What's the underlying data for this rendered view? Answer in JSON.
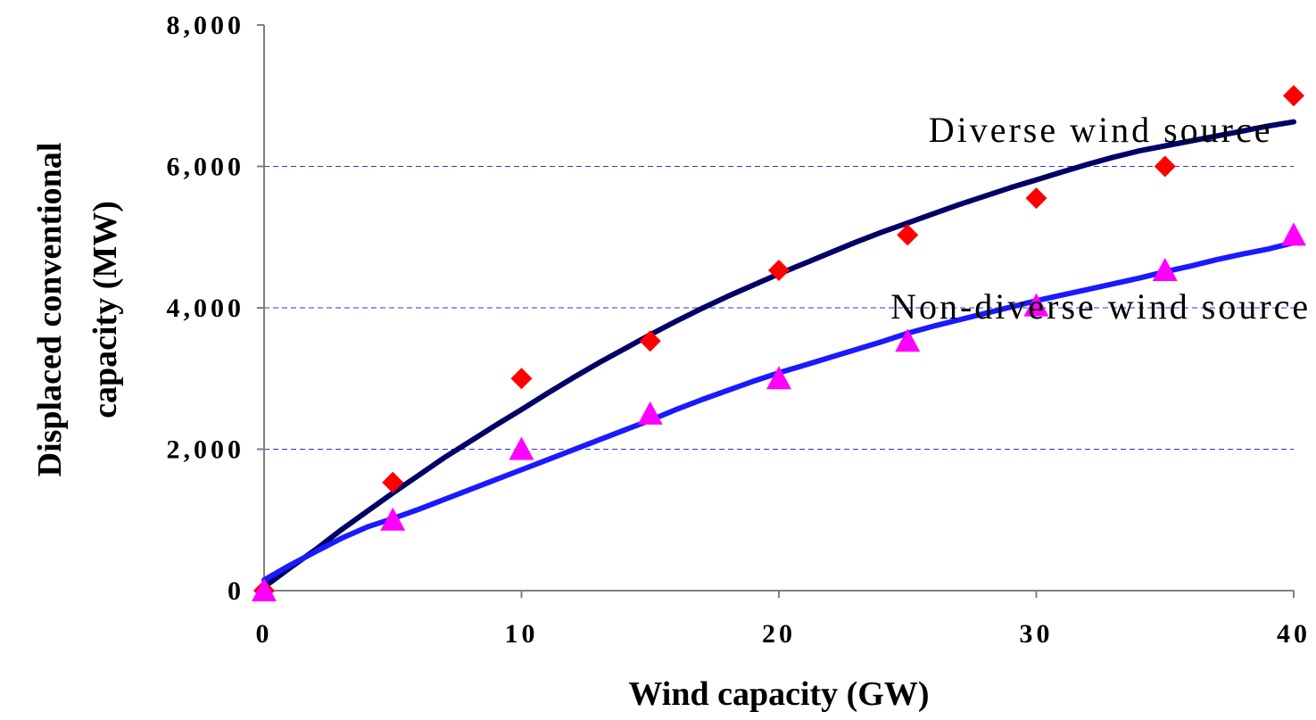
{
  "chart_data": {
    "type": "line",
    "xlabel": "Wind capacity (GW)",
    "ylabel_lines": [
      "Displaced conventional",
      "capacity (MW)"
    ],
    "xlim": [
      0,
      40
    ],
    "ylim": [
      0,
      8000
    ],
    "x_ticks": [
      0,
      10,
      20,
      30,
      40
    ],
    "x_tick_labels": [
      "0",
      "10",
      "20",
      "30",
      "40"
    ],
    "y_ticks": [
      0,
      2000,
      4000,
      6000,
      8000
    ],
    "y_tick_labels": [
      "0",
      "2,000",
      "4,000",
      "6,000",
      "8,000"
    ],
    "gridlines": {
      "y": [
        2000,
        4000,
        6000
      ],
      "style": "dashed",
      "color": "#3333cc"
    },
    "annotations": [
      {
        "text": "Diverse wind source",
        "x": 32.5,
        "y": 6350
      },
      {
        "text": "Non-diverse wind source",
        "x": 32.5,
        "y": 3850
      }
    ],
    "series": [
      {
        "kind": "line",
        "color": "#000066",
        "x": [
          0,
          1,
          2,
          3,
          4,
          5,
          6,
          7,
          8,
          9,
          10,
          11,
          12,
          13,
          14,
          15,
          16,
          17,
          18,
          19,
          20,
          21,
          22,
          23,
          24,
          25,
          26,
          27,
          28,
          29,
          30,
          31,
          32,
          33,
          34,
          35,
          36,
          37,
          38,
          39,
          40
        ],
        "y": [
          50,
          320,
          580,
          860,
          1120,
          1380,
          1630,
          1880,
          2110,
          2340,
          2560,
          2790,
          3010,
          3220,
          3420,
          3620,
          3810,
          3990,
          4160,
          4320,
          4480,
          4630,
          4780,
          4930,
          5070,
          5200,
          5330,
          5460,
          5580,
          5700,
          5810,
          5920,
          6030,
          6130,
          6220,
          6290,
          6360,
          6430,
          6500,
          6570,
          6630
        ]
      },
      {
        "kind": "line",
        "color": "#1a1aff",
        "x": [
          0,
          1,
          2,
          3,
          4,
          5,
          6,
          7,
          8,
          9,
          10,
          11,
          12,
          13,
          14,
          15,
          16,
          17,
          18,
          19,
          20,
          21,
          22,
          23,
          24,
          25,
          26,
          27,
          28,
          29,
          30,
          31,
          32,
          33,
          34,
          35,
          36,
          37,
          38,
          39,
          40
        ],
        "y": [
          150,
          360,
          550,
          740,
          900,
          1020,
          1150,
          1290,
          1430,
          1570,
          1710,
          1850,
          1990,
          2130,
          2270,
          2410,
          2560,
          2700,
          2830,
          2960,
          3080,
          3190,
          3300,
          3410,
          3520,
          3640,
          3740,
          3830,
          3920,
          4010,
          4100,
          4180,
          4260,
          4340,
          4420,
          4510,
          4590,
          4680,
          4760,
          4830,
          4920
        ]
      },
      {
        "kind": "marker",
        "marker": "diamond",
        "color": "#ff0000",
        "x": [
          0,
          5,
          10,
          15,
          20,
          25,
          30,
          35,
          40
        ],
        "y": [
          0,
          1530,
          3000,
          3530,
          4530,
          5030,
          5550,
          6000,
          7000
        ]
      },
      {
        "kind": "marker",
        "marker": "triangle",
        "color": "#ff00ff",
        "x": [
          0,
          5,
          10,
          15,
          20,
          25,
          30,
          35,
          40
        ],
        "y": [
          0,
          1000,
          2000,
          2500,
          3000,
          3530,
          4030,
          4530,
          5030
        ]
      }
    ]
  }
}
